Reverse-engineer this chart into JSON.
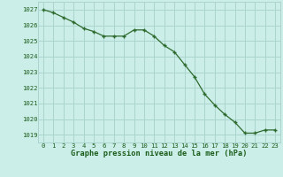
{
  "x": [
    0,
    1,
    2,
    3,
    4,
    5,
    6,
    7,
    8,
    9,
    10,
    11,
    12,
    13,
    14,
    15,
    16,
    17,
    18,
    19,
    20,
    21,
    22,
    23
  ],
  "y": [
    1027.0,
    1026.8,
    1026.5,
    1026.2,
    1025.8,
    1025.6,
    1025.3,
    1025.3,
    1025.3,
    1025.7,
    1025.7,
    1025.3,
    1024.7,
    1024.3,
    1023.5,
    1022.7,
    1021.6,
    1020.9,
    1020.3,
    1019.8,
    1019.1,
    1019.1,
    1019.3,
    1019.3
  ],
  "line_color": "#2d6a2d",
  "marker_color": "#2d6a2d",
  "bg_color": "#cceee8",
  "grid_color": "#aad4ce",
  "xlabel": "Graphe pression niveau de la mer (hPa)",
  "xlabel_color": "#1a5c1a",
  "tick_color": "#1a5c1a",
  "ylim_min": 1018.5,
  "ylim_max": 1027.5,
  "xlim_min": -0.5,
  "xlim_max": 23.5,
  "tick_fontsize": 5.2,
  "xlabel_fontsize": 6.2
}
